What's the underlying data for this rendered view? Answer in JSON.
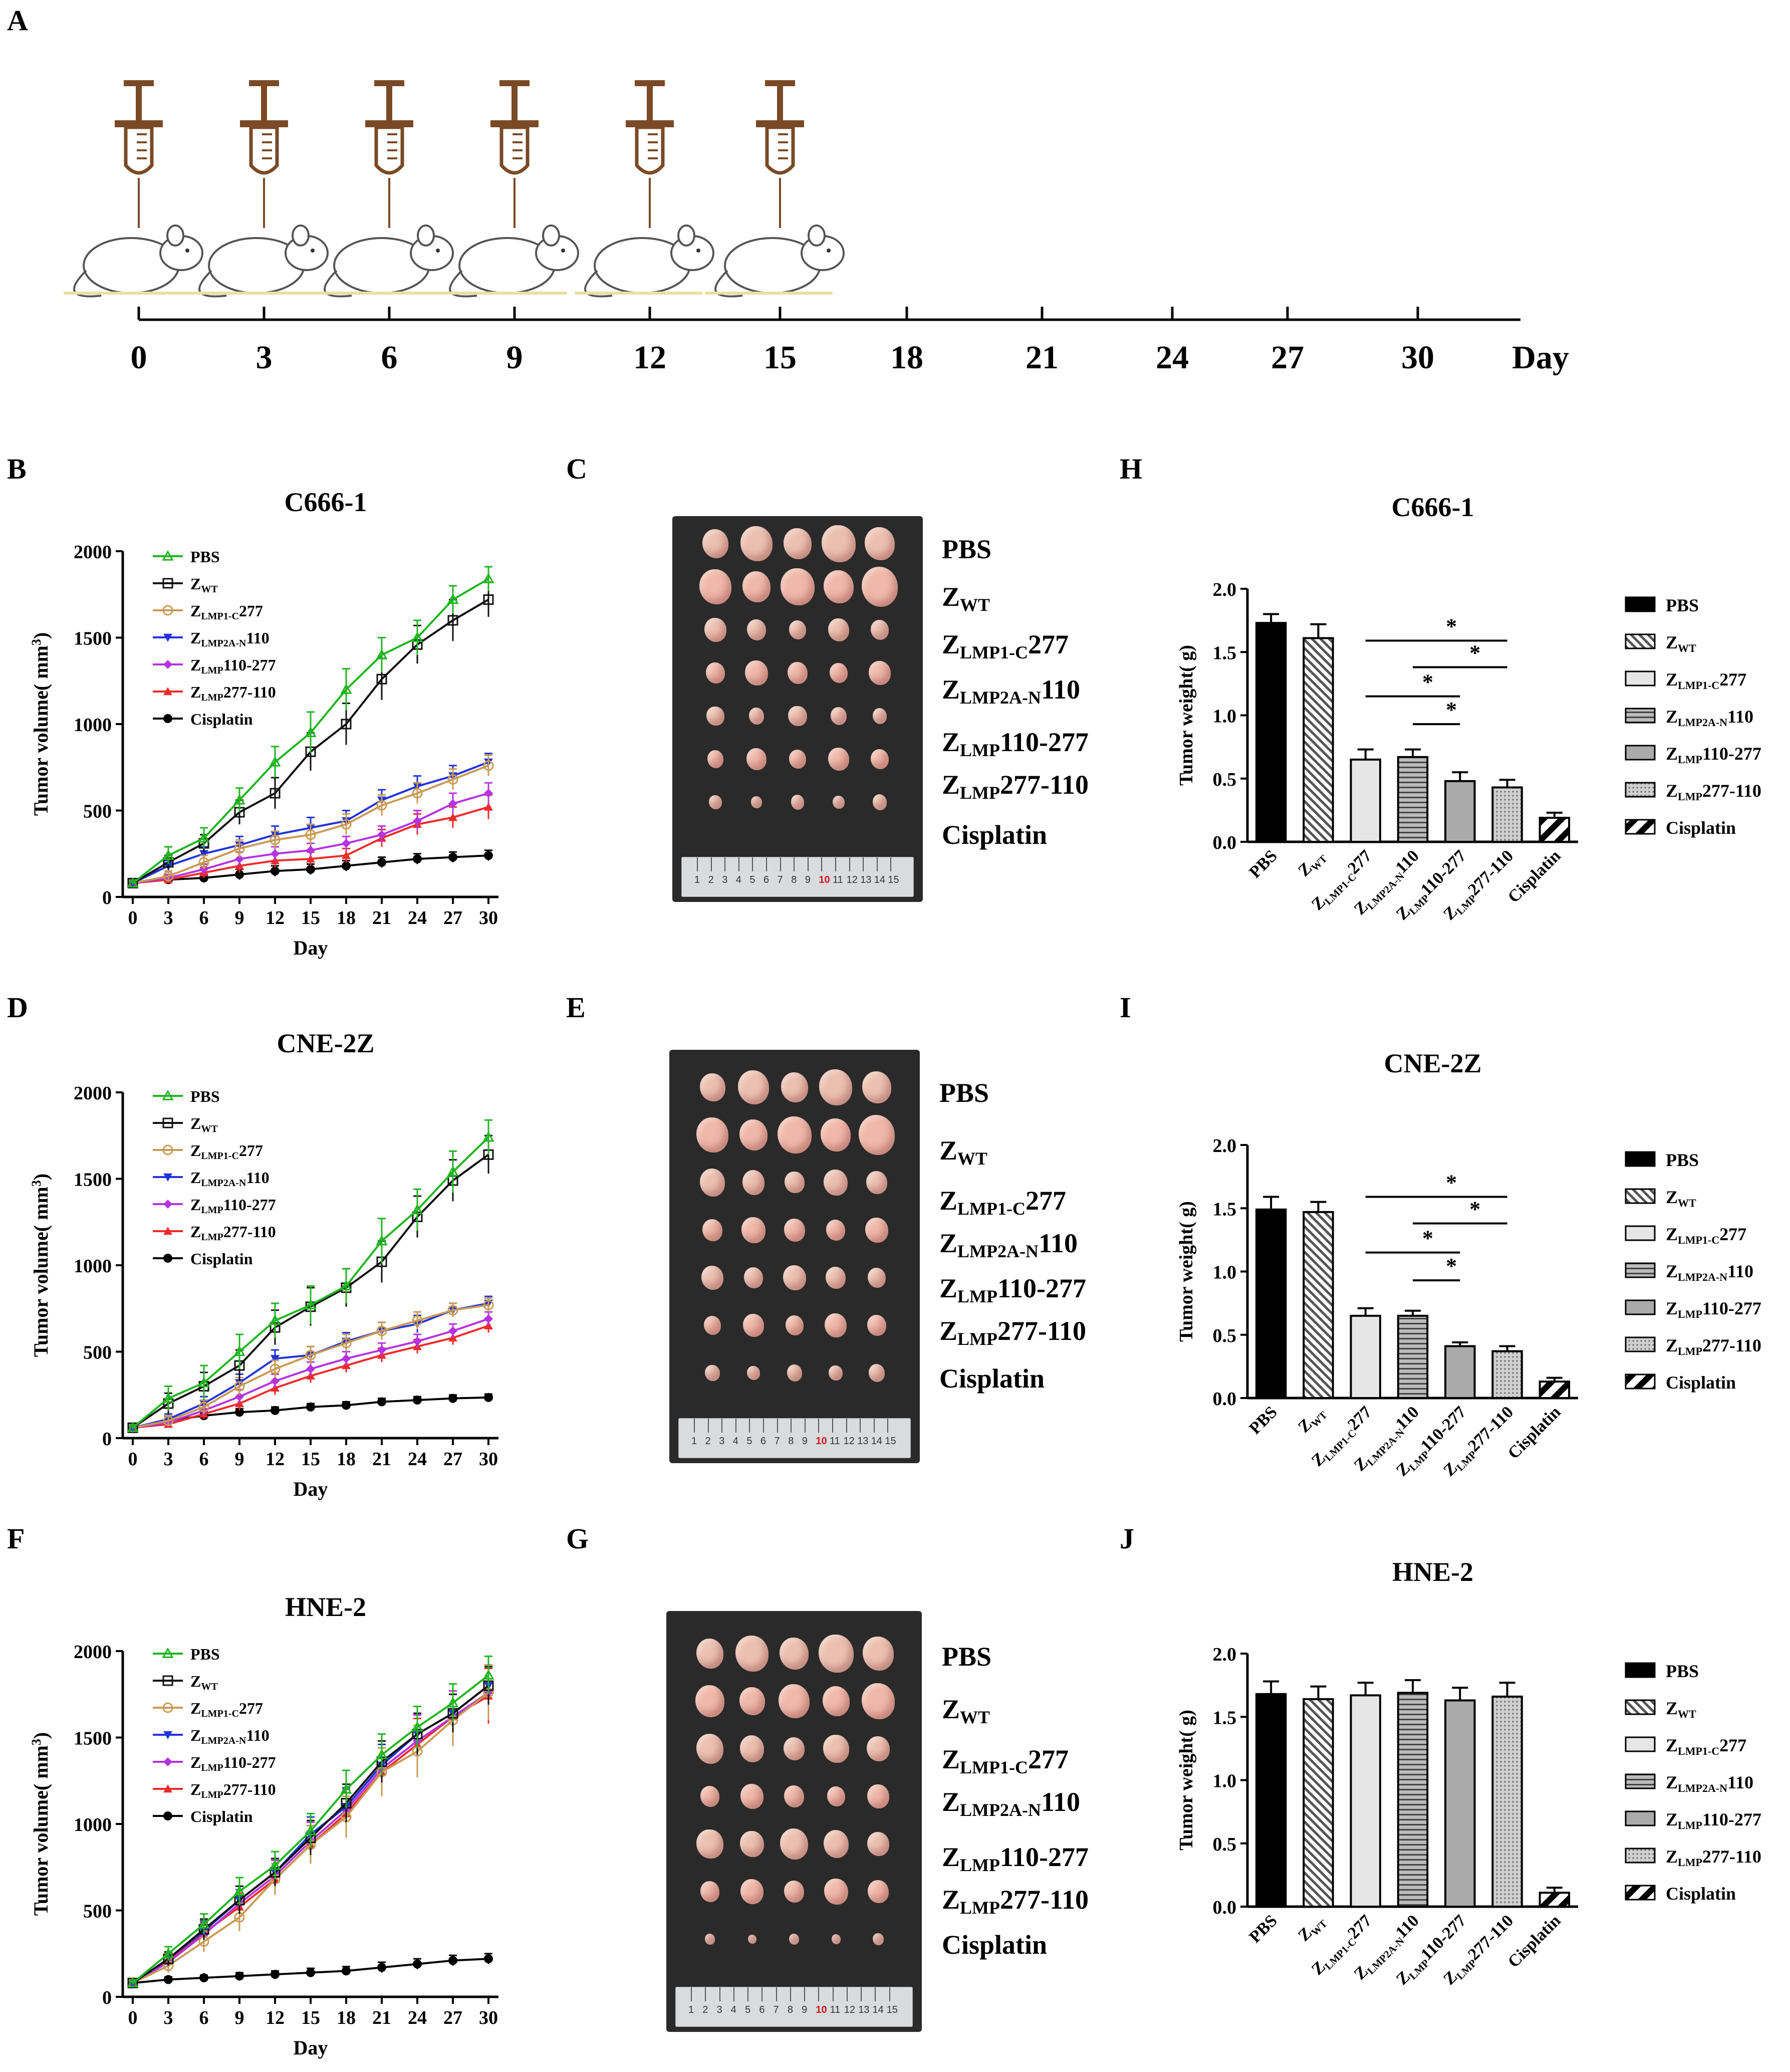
{
  "panel_letters": {
    "A": "A",
    "B": "B",
    "C": "C",
    "D": "D",
    "E": "E",
    "F": "F",
    "G": "G",
    "H": "H",
    "I": "I",
    "J": "J"
  },
  "timeline": {
    "days": [
      "0",
      "3",
      "6",
      "9",
      "12",
      "15",
      "18",
      "21",
      "24",
      "27",
      "30"
    ],
    "unit_label": "Day",
    "injection_count": 6
  },
  "groups": [
    {
      "key": "pbs",
      "z": "PBS",
      "sub": "",
      "rest": ""
    },
    {
      "key": "zwt",
      "z": "Z",
      "sub": "WT",
      "rest": ""
    },
    {
      "key": "lmp1c277",
      "z": "Z",
      "sub": "LMP1-C",
      "rest": "277"
    },
    {
      "key": "lmp2an110",
      "z": "Z",
      "sub": "LMP2A-N",
      "rest": "110"
    },
    {
      "key": "lmp110277",
      "z": "Z",
      "sub": "LMP",
      "rest": "110-277"
    },
    {
      "key": "lmp277110",
      "z": "Z",
      "sub": "LMP",
      "rest": "277-110"
    },
    {
      "key": "cis",
      "z": "Cisplatin",
      "sub": "",
      "rest": ""
    }
  ],
  "colors": {
    "pbs": "#1fb41f",
    "zwt": "#111111",
    "lmp1c277": "#c89a55",
    "lmp2an110": "#2233dd",
    "lmp110277": "#b533e0",
    "lmp277110": "#ee2b2b",
    "cis": "#000000"
  },
  "photo_ruler_numbers": [
    "1",
    "2",
    "3",
    "4",
    "5",
    "6",
    "7",
    "8",
    "9",
    "10",
    "11",
    "12",
    "13",
    "14",
    "15"
  ],
  "chart_data": [
    {
      "id": "B",
      "type": "line",
      "title": "C666-1",
      "xlabel": "Day",
      "ylabel_main": "Tumor volume( mm",
      "ylabel_sup": "3",
      "ylabel_end": ")",
      "x": [
        0,
        3,
        6,
        9,
        12,
        15,
        18,
        21,
        24,
        27,
        30
      ],
      "ylim": [
        0,
        2000
      ],
      "yticks": [
        0,
        500,
        1000,
        1500,
        2000
      ],
      "series": [
        {
          "key": "pbs",
          "values": [
            80,
            240,
            340,
            560,
            780,
            950,
            1200,
            1400,
            1500,
            1720,
            1840
          ],
          "err": [
            10,
            50,
            60,
            70,
            90,
            120,
            120,
            100,
            100,
            80,
            70
          ]
        },
        {
          "key": "zwt",
          "values": [
            80,
            200,
            310,
            490,
            600,
            840,
            1000,
            1260,
            1460,
            1600,
            1720
          ],
          "err": [
            10,
            40,
            50,
            70,
            90,
            110,
            120,
            120,
            110,
            120,
            100
          ]
        },
        {
          "key": "lmp1c277",
          "values": [
            80,
            120,
            200,
            280,
            330,
            360,
            420,
            530,
            600,
            680,
            760
          ],
          "err": [
            10,
            30,
            40,
            50,
            50,
            60,
            60,
            60,
            60,
            60,
            60
          ]
        },
        {
          "key": "lmp2an110",
          "values": [
            80,
            180,
            250,
            300,
            360,
            400,
            440,
            560,
            640,
            700,
            780
          ],
          "err": [
            10,
            30,
            40,
            50,
            50,
            60,
            60,
            60,
            60,
            60,
            50
          ]
        },
        {
          "key": "lmp110277",
          "values": [
            80,
            110,
            160,
            220,
            250,
            270,
            310,
            360,
            440,
            540,
            600
          ],
          "err": [
            10,
            20,
            30,
            40,
            40,
            40,
            40,
            50,
            60,
            60,
            60
          ]
        },
        {
          "key": "lmp277110",
          "values": [
            80,
            100,
            140,
            180,
            210,
            220,
            240,
            340,
            420,
            460,
            520
          ],
          "err": [
            10,
            20,
            30,
            40,
            40,
            40,
            40,
            50,
            60,
            60,
            70
          ]
        },
        {
          "key": "cis",
          "values": [
            80,
            100,
            110,
            130,
            150,
            160,
            180,
            200,
            220,
            230,
            240
          ],
          "err": [
            10,
            20,
            20,
            30,
            30,
            30,
            30,
            30,
            30,
            30,
            30
          ]
        }
      ]
    },
    {
      "id": "D",
      "type": "line",
      "title": "CNE-2Z",
      "xlabel": "Day",
      "ylabel_main": "Tumor volume( mm",
      "ylabel_sup": "3",
      "ylabel_end": ")",
      "x": [
        0,
        3,
        6,
        9,
        12,
        15,
        18,
        21,
        24,
        27,
        30
      ],
      "ylim": [
        0,
        2000
      ],
      "yticks": [
        0,
        500,
        1000,
        1500,
        2000
      ],
      "series": [
        {
          "key": "pbs",
          "values": [
            60,
            230,
            320,
            500,
            680,
            770,
            880,
            1140,
            1320,
            1540,
            1740
          ],
          "err": [
            10,
            70,
            100,
            100,
            100,
            110,
            100,
            130,
            120,
            120,
            100
          ]
        },
        {
          "key": "zwt",
          "values": [
            60,
            200,
            300,
            420,
            640,
            760,
            870,
            1020,
            1280,
            1490,
            1640
          ],
          "err": [
            10,
            60,
            80,
            90,
            100,
            110,
            110,
            120,
            120,
            120,
            110
          ]
        },
        {
          "key": "lmp1c277",
          "values": [
            60,
            100,
            180,
            300,
            400,
            480,
            550,
            620,
            680,
            740,
            770
          ],
          "err": [
            10,
            30,
            40,
            50,
            50,
            50,
            50,
            50,
            50,
            40,
            40
          ]
        },
        {
          "key": "lmp2an110",
          "values": [
            60,
            110,
            200,
            320,
            460,
            480,
            560,
            620,
            660,
            740,
            780
          ],
          "err": [
            10,
            30,
            40,
            50,
            50,
            50,
            50,
            50,
            50,
            40,
            40
          ]
        },
        {
          "key": "lmp110277",
          "values": [
            60,
            90,
            160,
            240,
            330,
            400,
            460,
            510,
            560,
            620,
            690
          ],
          "err": [
            10,
            30,
            30,
            40,
            40,
            40,
            40,
            40,
            40,
            40,
            40
          ]
        },
        {
          "key": "lmp277110",
          "values": [
            60,
            80,
            140,
            200,
            290,
            360,
            420,
            480,
            530,
            580,
            650
          ],
          "err": [
            10,
            20,
            30,
            40,
            40,
            40,
            40,
            40,
            40,
            40,
            40
          ]
        },
        {
          "key": "cis",
          "values": [
            60,
            100,
            130,
            150,
            160,
            180,
            190,
            210,
            220,
            230,
            235
          ],
          "err": [
            10,
            20,
            20,
            20,
            20,
            20,
            20,
            20,
            20,
            20,
            20
          ]
        }
      ]
    },
    {
      "id": "F",
      "type": "line",
      "title": "HNE-2",
      "xlabel": "Day",
      "ylabel_main": "Tumor volume( mm",
      "ylabel_sup": "3",
      "ylabel_end": ")",
      "x": [
        0,
        3,
        6,
        9,
        12,
        15,
        18,
        21,
        24,
        27,
        30
      ],
      "ylim": [
        0,
        2000
      ],
      "yticks": [
        0,
        500,
        1000,
        1500,
        2000
      ],
      "series": [
        {
          "key": "pbs",
          "values": [
            80,
            250,
            420,
            610,
            760,
            960,
            1200,
            1400,
            1560,
            1700,
            1860
          ],
          "err": [
            10,
            40,
            60,
            80,
            80,
            100,
            110,
            120,
            120,
            110,
            110
          ]
        },
        {
          "key": "zwt",
          "values": [
            80,
            220,
            390,
            560,
            720,
            920,
            1120,
            1360,
            1520,
            1640,
            1800
          ],
          "err": [
            10,
            40,
            60,
            80,
            80,
            100,
            110,
            120,
            120,
            110,
            110
          ]
        },
        {
          "key": "lmp1c277",
          "values": [
            80,
            180,
            320,
            460,
            680,
            880,
            1040,
            1300,
            1420,
            1600,
            1760
          ],
          "err": [
            10,
            40,
            60,
            80,
            90,
            110,
            120,
            140,
            150,
            150,
            160
          ]
        },
        {
          "key": "lmp2an110",
          "values": [
            80,
            220,
            380,
            560,
            720,
            940,
            1100,
            1340,
            1520,
            1640,
            1800
          ],
          "err": [
            10,
            40,
            60,
            80,
            80,
            100,
            110,
            120,
            120,
            110,
            110
          ]
        },
        {
          "key": "lmp110277",
          "values": [
            80,
            200,
            360,
            540,
            700,
            900,
            1080,
            1320,
            1480,
            1620,
            1760
          ],
          "err": [
            10,
            40,
            60,
            80,
            90,
            110,
            120,
            140,
            150,
            150,
            160
          ]
        },
        {
          "key": "lmp277110",
          "values": [
            80,
            210,
            370,
            520,
            680,
            880,
            1060,
            1300,
            1460,
            1620,
            1740
          ],
          "err": [
            10,
            40,
            60,
            80,
            90,
            110,
            120,
            140,
            150,
            150,
            160
          ]
        },
        {
          "key": "cis",
          "values": [
            80,
            100,
            110,
            120,
            130,
            140,
            150,
            170,
            190,
            210,
            220
          ],
          "err": [
            10,
            15,
            15,
            20,
            20,
            25,
            25,
            30,
            30,
            30,
            30
          ]
        }
      ]
    },
    {
      "id": "H",
      "type": "bar",
      "title": "C666-1",
      "ylabel": "Tumor weight( g)",
      "ylim": [
        0,
        2.0
      ],
      "yticks": [
        "0.0",
        "0.5",
        "1.0",
        "1.5",
        "2.0"
      ],
      "values": [
        1.73,
        1.61,
        0.65,
        0.67,
        0.48,
        0.43,
        0.19
      ],
      "err": [
        0.07,
        0.11,
        0.08,
        0.06,
        0.07,
        0.06,
        0.04
      ],
      "sig": [
        {
          "from": 2,
          "to": 5,
          "label": "*"
        },
        {
          "from": 3,
          "to": 5,
          "label": "*"
        },
        {
          "from": 2,
          "to": 4,
          "label": "*"
        },
        {
          "from": 3,
          "to": 4,
          "label": "*"
        }
      ]
    },
    {
      "id": "I",
      "type": "bar",
      "title": "CNE-2Z",
      "ylabel": "Tumor weight( g)",
      "ylim": [
        0,
        2.0
      ],
      "yticks": [
        "0.0",
        "0.5",
        "1.0",
        "1.5",
        "2.0"
      ],
      "values": [
        1.49,
        1.47,
        0.65,
        0.65,
        0.41,
        0.37,
        0.13
      ],
      "err": [
        0.1,
        0.08,
        0.06,
        0.04,
        0.03,
        0.04,
        0.03
      ],
      "sig": [
        {
          "from": 2,
          "to": 5,
          "label": "*"
        },
        {
          "from": 3,
          "to": 5,
          "label": "*"
        },
        {
          "from": 2,
          "to": 4,
          "label": "*"
        },
        {
          "from": 3,
          "to": 4,
          "label": "*"
        }
      ]
    },
    {
      "id": "J",
      "type": "bar",
      "title": "HNE-2",
      "ylabel": "Tumor weight( g)",
      "ylim": [
        0,
        2.0
      ],
      "yticks": [
        "0.0",
        "0.5",
        "1.0",
        "1.5",
        "2.0"
      ],
      "values": [
        1.68,
        1.64,
        1.67,
        1.69,
        1.63,
        1.66,
        0.11
      ],
      "err": [
        0.1,
        0.1,
        0.1,
        0.1,
        0.1,
        0.11,
        0.04
      ],
      "sig": []
    }
  ]
}
